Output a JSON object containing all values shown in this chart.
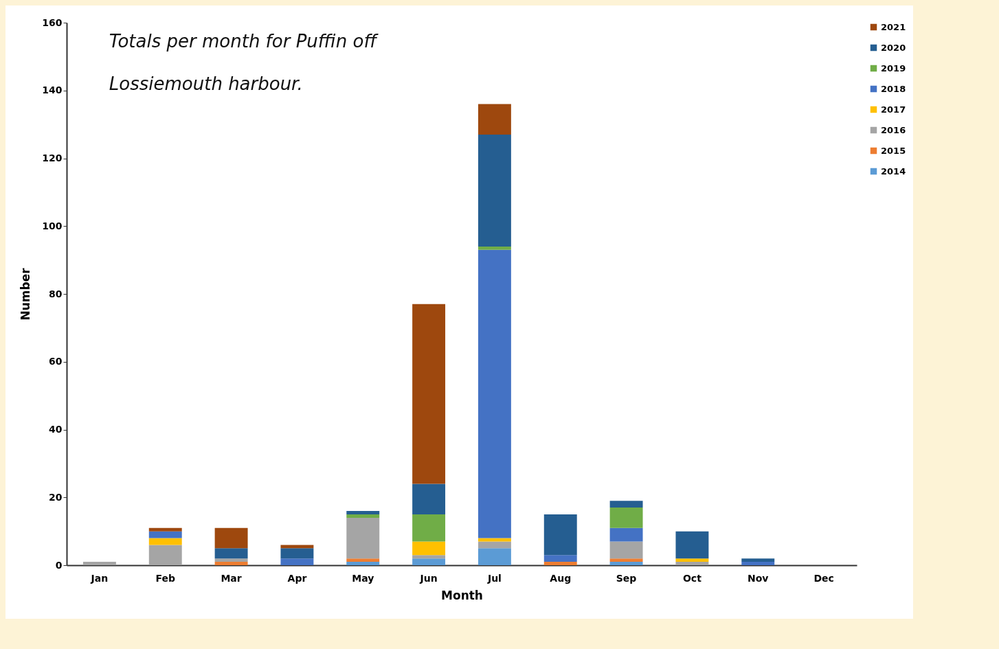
{
  "chart_data": {
    "type": "bar",
    "stacked": true,
    "title": "Totals per month for Puffin off Lossiemouth harbour.",
    "xlabel": "Month",
    "ylabel": "Number",
    "categories": [
      "Jan",
      "Feb",
      "Mar",
      "Apr",
      "May",
      "Jun",
      "Jul",
      "Aug",
      "Sep",
      "Oct",
      "Nov",
      "Dec"
    ],
    "series": [
      {
        "name": "2014",
        "color": "#5b9bd5",
        "values": [
          0,
          0,
          0,
          0,
          1,
          2,
          5,
          0,
          1,
          0,
          0,
          0
        ]
      },
      {
        "name": "2015",
        "color": "#ed7d31",
        "values": [
          0,
          0,
          1,
          0,
          1,
          0,
          0,
          1,
          1,
          0,
          0,
          0
        ]
      },
      {
        "name": "2016",
        "color": "#a5a5a5",
        "values": [
          1,
          6,
          1,
          0,
          12,
          1,
          2,
          0,
          5,
          1,
          0,
          0
        ]
      },
      {
        "name": "2017",
        "color": "#ffc000",
        "values": [
          0,
          2,
          0,
          0,
          0,
          4,
          1,
          0,
          0,
          1,
          0,
          0
        ]
      },
      {
        "name": "2018",
        "color": "#4472c4",
        "values": [
          0,
          2,
          0,
          2,
          0,
          0,
          85,
          2,
          4,
          0,
          1,
          0
        ]
      },
      {
        "name": "2019",
        "color": "#70ad47",
        "values": [
          0,
          0,
          0,
          0,
          1,
          8,
          1,
          0,
          6,
          0,
          0,
          0
        ]
      },
      {
        "name": "2020",
        "color": "#255e91",
        "values": [
          0,
          0,
          3,
          3,
          1,
          9,
          33,
          12,
          2,
          8,
          1,
          0
        ]
      },
      {
        "name": "2021",
        "color": "#9e480e",
        "values": [
          0,
          1,
          6,
          1,
          0,
          53,
          9,
          0,
          0,
          0,
          0,
          0
        ]
      }
    ],
    "ylim": [
      0,
      160
    ],
    "yticks": [
      0,
      20,
      40,
      60,
      80,
      100,
      120,
      140,
      160
    ],
    "grid": false,
    "legend": "right"
  }
}
